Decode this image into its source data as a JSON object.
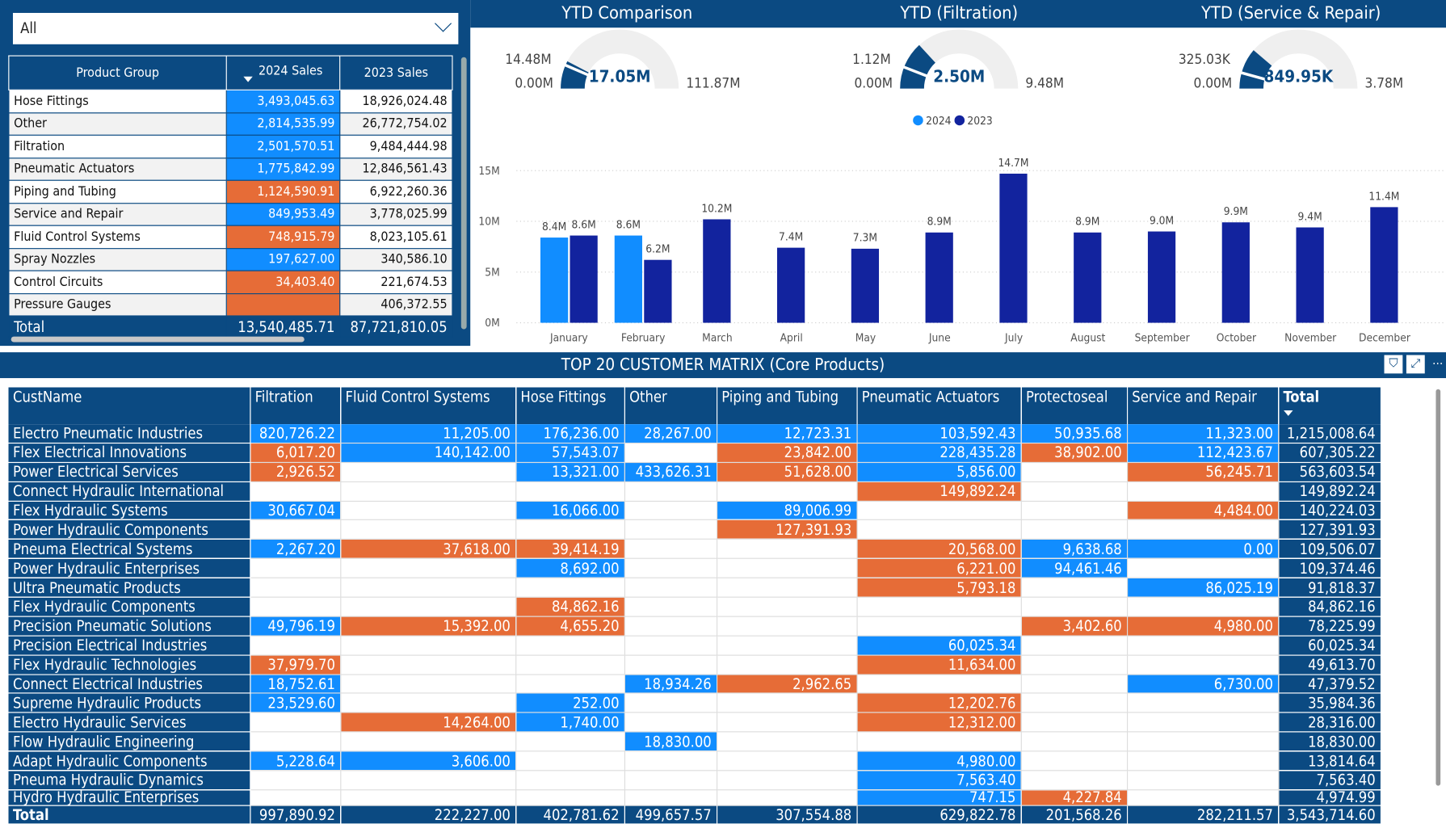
{
  "slicer": {
    "value": "All"
  },
  "product_table": {
    "headers": [
      "Product Group",
      "2024 Sales",
      "2023 Sales"
    ],
    "rows": [
      {
        "group": "Hose Fittings",
        "s2024": "3,493,045.63",
        "s2023": "18,926,024.48",
        "c": "b"
      },
      {
        "group": "Other",
        "s2024": "2,814,535.99",
        "s2023": "26,772,754.02",
        "c": "b"
      },
      {
        "group": "Filtration",
        "s2024": "2,501,570.51",
        "s2023": "9,484,444.98",
        "c": "b"
      },
      {
        "group": "Pneumatic Actuators",
        "s2024": "1,775,842.99",
        "s2023": "12,846,561.43",
        "c": "b"
      },
      {
        "group": "Piping and Tubing",
        "s2024": "1,124,590.91",
        "s2023": "6,922,260.36",
        "c": "o"
      },
      {
        "group": "Service and Repair",
        "s2024": "849,953.49",
        "s2023": "3,778,025.99",
        "c": "b"
      },
      {
        "group": "Fluid Control Systems",
        "s2024": "748,915.79",
        "s2023": "8,023,105.61",
        "c": "o"
      },
      {
        "group": "Spray Nozzles",
        "s2024": "197,627.00",
        "s2023": "340,586.10",
        "c": "b"
      },
      {
        "group": "Control Circuits",
        "s2024": "34,403.40",
        "s2023": "221,674.53",
        "c": "o"
      },
      {
        "group": "Pressure Gauges",
        "s2024": "",
        "s2023": "406,372.55",
        "c": "o"
      }
    ],
    "total": {
      "label": "Total",
      "s2024": "13,540,485.71",
      "s2023": "87,721,810.05"
    }
  },
  "gauges": [
    {
      "title": "YTD Comparison",
      "value_label": "17.05M",
      "min_label": "0.00M",
      "max_label": "111.87M",
      "target_label": "14.48M",
      "value": 17.05,
      "max": 111.87,
      "target": 14.48
    },
    {
      "title": "YTD (Filtration)",
      "value_label": "2.50M",
      "min_label": "0.00M",
      "max_label": "9.48M",
      "target_label": "1.12M",
      "value": 2.5,
      "max": 9.48,
      "target": 1.12
    },
    {
      "title": "YTD (Service & Repair)",
      "value_label": "849.95K",
      "min_label": "0.00M",
      "max_label": "3.78M",
      "target_label": "325.03K",
      "value": 0.84995,
      "max": 3.78,
      "target": 0.32503
    }
  ],
  "colors": {
    "navy": "#0b4a82",
    "blue2024": "#118dff",
    "navy2023": "#12239e",
    "orange": "#e66c37"
  },
  "chart_data": {
    "type": "bar",
    "categories": [
      "January",
      "February",
      "March",
      "April",
      "May",
      "June",
      "July",
      "August",
      "September",
      "October",
      "November",
      "December"
    ],
    "series": [
      {
        "name": "2024",
        "values": [
          8.4,
          8.6,
          null,
          null,
          null,
          null,
          null,
          null,
          null,
          null,
          null,
          null
        ],
        "labels": [
          "8.4M",
          "8.6M",
          "",
          "",
          "",
          "",
          "",
          "",
          "",
          "",
          "",
          ""
        ]
      },
      {
        "name": "2023",
        "values": [
          8.6,
          6.2,
          10.2,
          7.4,
          7.3,
          8.9,
          14.7,
          8.9,
          9.0,
          9.9,
          9.4,
          11.4
        ],
        "labels": [
          "8.6M",
          "6.2M",
          "10.2M",
          "7.4M",
          "7.3M",
          "8.9M",
          "14.7M",
          "8.9M",
          "9.0M",
          "9.9M",
          "9.4M",
          "11.4M"
        ]
      }
    ],
    "yticks": [
      "0M",
      "5M",
      "10M",
      "15M"
    ],
    "ylim": [
      0,
      15
    ],
    "grid": true,
    "legend": "top-center"
  },
  "matrix": {
    "title": "TOP 20 CUSTOMER MATRIX (Core Products)",
    "headers": [
      "CustName",
      "Filtration",
      "Fluid Control Systems",
      "Hose Fittings",
      "Other",
      "Piping and Tubing",
      "Pneumatic Actuators",
      "Protectoseal",
      "Service and Repair",
      "Total"
    ],
    "rows": [
      {
        "name": "Electro Pneumatic Industries",
        "cells": [
          [
            "820,726.22",
            "b"
          ],
          [
            "11,205.00",
            "b"
          ],
          [
            "176,236.00",
            "b"
          ],
          [
            "28,267.00",
            "b"
          ],
          [
            "12,723.31",
            "b"
          ],
          [
            "103,592.43",
            "b"
          ],
          [
            "50,935.68",
            "b"
          ],
          [
            "11,323.00",
            "b"
          ]
        ],
        "total": "1,215,008.64"
      },
      {
        "name": "Flex Electrical Innovations",
        "cells": [
          [
            "6,017.20",
            "o"
          ],
          [
            "140,142.00",
            "b"
          ],
          [
            "57,543.07",
            "b"
          ],
          [
            "",
            ""
          ],
          [
            "23,842.00",
            "o"
          ],
          [
            "228,435.28",
            "b"
          ],
          [
            "38,902.00",
            "o"
          ],
          [
            "112,423.67",
            "b"
          ]
        ],
        "total": "607,305.22"
      },
      {
        "name": "Power Electrical Services",
        "cells": [
          [
            "2,926.52",
            "o"
          ],
          [
            "",
            ""
          ],
          [
            "13,321.00",
            "b"
          ],
          [
            "433,626.31",
            "b"
          ],
          [
            "51,628.00",
            "o"
          ],
          [
            "5,856.00",
            "b"
          ],
          [
            "",
            ""
          ],
          [
            "56,245.71",
            "o"
          ]
        ],
        "total": "563,603.54"
      },
      {
        "name": "Connect Hydraulic International",
        "cells": [
          [
            "",
            ""
          ],
          [
            "",
            ""
          ],
          [
            "",
            ""
          ],
          [
            "",
            ""
          ],
          [
            "",
            ""
          ],
          [
            "149,892.24",
            "o"
          ],
          [
            "",
            ""
          ],
          [
            "",
            ""
          ]
        ],
        "total": "149,892.24"
      },
      {
        "name": "Flex Hydraulic Systems",
        "cells": [
          [
            "30,667.04",
            "b"
          ],
          [
            "",
            ""
          ],
          [
            "16,066.00",
            "b"
          ],
          [
            "",
            ""
          ],
          [
            "89,006.99",
            "b"
          ],
          [
            "",
            ""
          ],
          [
            "",
            ""
          ],
          [
            "4,484.00",
            "o"
          ]
        ],
        "total": "140,224.03"
      },
      {
        "name": "Power Hydraulic Components",
        "cells": [
          [
            "",
            ""
          ],
          [
            "",
            ""
          ],
          [
            "",
            ""
          ],
          [
            "",
            ""
          ],
          [
            "127,391.93",
            "o"
          ],
          [
            "",
            ""
          ],
          [
            "",
            ""
          ],
          [
            "",
            ""
          ]
        ],
        "total": "127,391.93"
      },
      {
        "name": "Pneuma Electrical Systems",
        "cells": [
          [
            "2,267.20",
            "b"
          ],
          [
            "37,618.00",
            "o"
          ],
          [
            "39,414.19",
            "o"
          ],
          [
            "",
            ""
          ],
          [
            "",
            ""
          ],
          [
            "20,568.00",
            "o"
          ],
          [
            "9,638.68",
            "b"
          ],
          [
            "0.00",
            "b"
          ]
        ],
        "total": "109,506.07"
      },
      {
        "name": "Power Hydraulic Enterprises",
        "cells": [
          [
            "",
            ""
          ],
          [
            "",
            ""
          ],
          [
            "8,692.00",
            "b"
          ],
          [
            "",
            ""
          ],
          [
            "",
            ""
          ],
          [
            "6,221.00",
            "o"
          ],
          [
            "94,461.46",
            "b"
          ],
          [
            "",
            ""
          ]
        ],
        "total": "109,374.46"
      },
      {
        "name": "Ultra Pneumatic Products",
        "cells": [
          [
            "",
            ""
          ],
          [
            "",
            ""
          ],
          [
            "",
            ""
          ],
          [
            "",
            ""
          ],
          [
            "",
            ""
          ],
          [
            "5,793.18",
            "o"
          ],
          [
            "",
            ""
          ],
          [
            "86,025.19",
            "b"
          ]
        ],
        "total": "91,818.37"
      },
      {
        "name": "Flex Hydraulic Components",
        "cells": [
          [
            "",
            ""
          ],
          [
            "",
            ""
          ],
          [
            "84,862.16",
            "o"
          ],
          [
            "",
            ""
          ],
          [
            "",
            ""
          ],
          [
            "",
            ""
          ],
          [
            "",
            ""
          ],
          [
            "",
            ""
          ]
        ],
        "total": "84,862.16"
      },
      {
        "name": "Precision Pneumatic Solutions",
        "cells": [
          [
            "49,796.19",
            "b"
          ],
          [
            "15,392.00",
            "o"
          ],
          [
            "4,655.20",
            "o"
          ],
          [
            "",
            ""
          ],
          [
            "",
            ""
          ],
          [
            "",
            ""
          ],
          [
            "3,402.60",
            "o"
          ],
          [
            "4,980.00",
            "o"
          ]
        ],
        "total": "78,225.99"
      },
      {
        "name": "Precision Electrical Industries",
        "cells": [
          [
            "",
            ""
          ],
          [
            "",
            ""
          ],
          [
            "",
            ""
          ],
          [
            "",
            ""
          ],
          [
            "",
            ""
          ],
          [
            "60,025.34",
            "b"
          ],
          [
            "",
            ""
          ],
          [
            "",
            ""
          ]
        ],
        "total": "60,025.34"
      },
      {
        "name": "Flex Hydraulic Technologies",
        "cells": [
          [
            "37,979.70",
            "o"
          ],
          [
            "",
            ""
          ],
          [
            "",
            ""
          ],
          [
            "",
            ""
          ],
          [
            "",
            ""
          ],
          [
            "11,634.00",
            "o"
          ],
          [
            "",
            ""
          ],
          [
            "",
            ""
          ]
        ],
        "total": "49,613.70"
      },
      {
        "name": "Connect Electrical Industries",
        "cells": [
          [
            "18,752.61",
            "b"
          ],
          [
            "",
            ""
          ],
          [
            "",
            ""
          ],
          [
            "18,934.26",
            "b"
          ],
          [
            "2,962.65",
            "o"
          ],
          [
            "",
            ""
          ],
          [
            "",
            ""
          ],
          [
            "6,730.00",
            "b"
          ]
        ],
        "total": "47,379.52"
      },
      {
        "name": "Supreme Hydraulic Products",
        "cells": [
          [
            "23,529.60",
            "b"
          ],
          [
            "",
            ""
          ],
          [
            "252.00",
            "b"
          ],
          [
            "",
            ""
          ],
          [
            "",
            ""
          ],
          [
            "12,202.76",
            "o"
          ],
          [
            "",
            ""
          ],
          [
            "",
            ""
          ]
        ],
        "total": "35,984.36"
      },
      {
        "name": "Electro Hydraulic Services",
        "cells": [
          [
            "",
            ""
          ],
          [
            "14,264.00",
            "o"
          ],
          [
            "1,740.00",
            "b"
          ],
          [
            "",
            ""
          ],
          [
            "",
            ""
          ],
          [
            "12,312.00",
            "o"
          ],
          [
            "",
            ""
          ],
          [
            "",
            ""
          ]
        ],
        "total": "28,316.00"
      },
      {
        "name": "Flow Hydraulic Engineering",
        "cells": [
          [
            "",
            ""
          ],
          [
            "",
            ""
          ],
          [
            "",
            ""
          ],
          [
            "18,830.00",
            "b"
          ],
          [
            "",
            ""
          ],
          [
            "",
            ""
          ],
          [
            "",
            ""
          ],
          [
            "",
            ""
          ]
        ],
        "total": "18,830.00"
      },
      {
        "name": "Adapt Hydraulic Components",
        "cells": [
          [
            "5,228.64",
            "b"
          ],
          [
            "3,606.00",
            "b"
          ],
          [
            "",
            ""
          ],
          [
            "",
            ""
          ],
          [
            "",
            ""
          ],
          [
            "4,980.00",
            "b"
          ],
          [
            "",
            ""
          ],
          [
            "",
            ""
          ]
        ],
        "total": "13,814.64"
      },
      {
        "name": "Pneuma Hydraulic Dynamics",
        "cells": [
          [
            "",
            ""
          ],
          [
            "",
            ""
          ],
          [
            "",
            ""
          ],
          [
            "",
            ""
          ],
          [
            "",
            ""
          ],
          [
            "7,563.40",
            "b"
          ],
          [
            "",
            ""
          ],
          [
            "",
            ""
          ]
        ],
        "total": "7,563.40"
      },
      {
        "name": "Hydro Hydraulic Enterprises",
        "cells": [
          [
            "",
            ""
          ],
          [
            "",
            ""
          ],
          [
            "",
            ""
          ],
          [
            "",
            ""
          ],
          [
            "",
            ""
          ],
          [
            "747.15",
            "b"
          ],
          [
            "4,227.84",
            "o"
          ],
          [
            "",
            ""
          ]
        ],
        "total": "4,974.99",
        "clipped": true
      }
    ],
    "total": {
      "label": "Total",
      "cells": [
        "997,890.92",
        "222,227.00",
        "402,781.62",
        "499,657.57",
        "307,554.88",
        "629,822.78",
        "201,568.26",
        "282,211.57",
        "3,543,714.60"
      ]
    },
    "icons": [
      "filter-icon",
      "focus-mode-icon",
      "more-options-icon"
    ]
  }
}
